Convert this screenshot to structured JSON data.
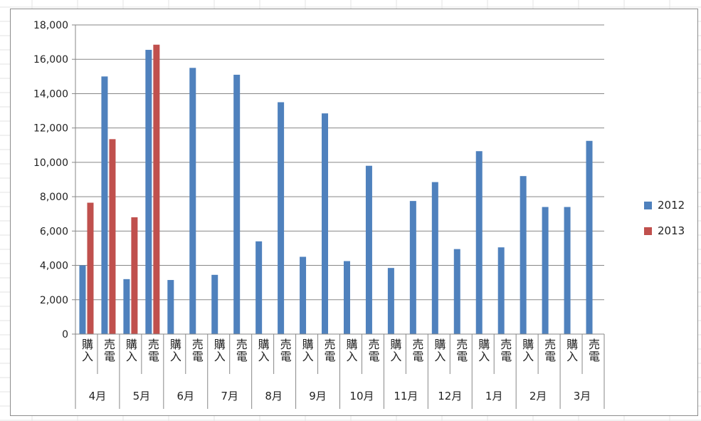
{
  "chart_data": {
    "type": "bar",
    "ylim": [
      0,
      18000
    ],
    "yticks": [
      "0",
      "2,000",
      "4,000",
      "6,000",
      "8,000",
      "10,000",
      "12,000",
      "14,000",
      "16,000",
      "18,000"
    ],
    "grid": true,
    "legend_position": "right",
    "months": [
      "4月",
      "5月",
      "6月",
      "7月",
      "8月",
      "9月",
      "10月",
      "11月",
      "12月",
      "1月",
      "2月",
      "3月"
    ],
    "subcategories": [
      "購入",
      "売電"
    ],
    "series": [
      {
        "name": "2012",
        "color": "#4f81bd",
        "values": [
          4000,
          15000,
          3200,
          16550,
          3150,
          15500,
          3450,
          15100,
          5400,
          13500,
          4500,
          12850,
          4250,
          9800,
          3850,
          7750,
          8850,
          4950,
          10650,
          5050,
          9200,
          7400,
          7400,
          11250
        ]
      },
      {
        "name": "2013",
        "color": "#c0504d",
        "values": [
          7650,
          11350,
          6800,
          16850,
          null,
          null,
          null,
          null,
          null,
          null,
          null,
          null,
          null,
          null,
          null,
          null,
          null,
          null,
          null,
          null,
          null,
          null,
          null,
          null
        ]
      }
    ]
  }
}
